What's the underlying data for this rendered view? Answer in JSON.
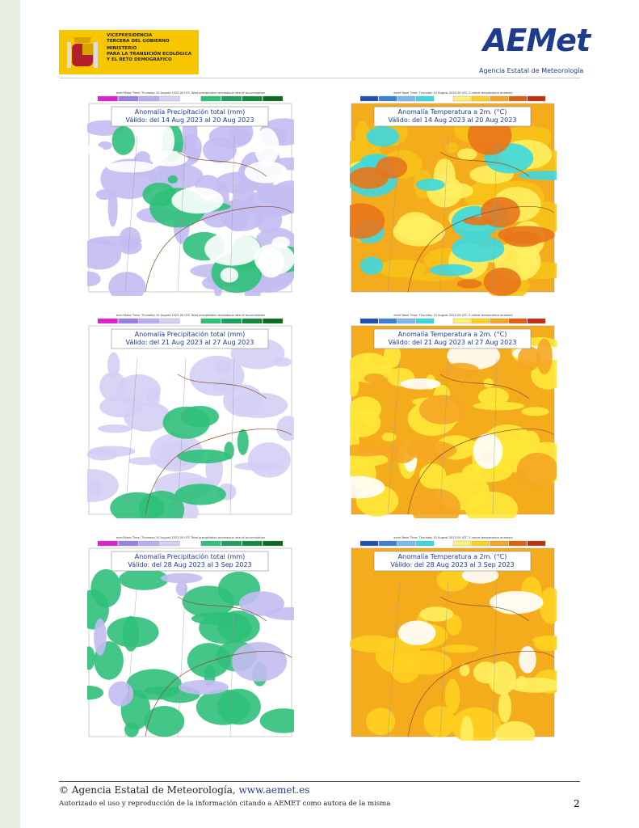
{
  "header": {
    "government": [
      "VICEPRESIDENCIA",
      "TERCERA DEL GOBIERNO",
      "MINISTERIO",
      "PARA LA TRANSICIÓN ECOLÓGICA",
      "Y EL RETO DEMOGRÁFICO"
    ],
    "logo": "AEMet",
    "agency": "Agencia Estatal de Meteorología"
  },
  "maps": [
    {
      "caption": "ecmf Base Time: Thursday 10 August 2023 00 UTC Total precipitation anomalous rate of accumulation",
      "title": "Anomalía Precipitación total (mm)",
      "valid": "Válido: del 14 Aug 2023 al 20 Aug 2023"
    },
    {
      "caption": "ecmf Base Time: Thursday 10 August 2023 00 UTC 2 metre temperature anomaly",
      "title": "Anomalía Temperatura a 2m. (°C)",
      "valid": "Válido: del 14 Aug 2023 al 20 Aug 2023"
    },
    {
      "caption": "ecmf Base Time: Thursday 10 August 2023 00 UTC Total precipitation anomalous rate of accumulation",
      "title": "Anomalía Precipitación total (mm)",
      "valid": "Válido: del 21 Aug 2023 al 27 Aug 2023"
    },
    {
      "caption": "ecmf Base Time: Thursday 10 August 2023 00 UTC 2 metre temperature anomaly",
      "title": "Anomalía Temperatura a 2m. (°C)",
      "valid": "Válido: del 21 Aug 2023 al 27 Aug 2023"
    },
    {
      "caption": "ecmf Base Time: Thursday 10 August 2023 00 UTC Total precipitation anomalous rate of accumulation",
      "title": "Anomalía Precipitación total (mm)",
      "valid": "Válido: del 28 Aug 2023 al 3 Sep 2023"
    },
    {
      "caption": "ecmf Base Time: Thursday 10 August 2023 00 UTC 2 metre temperature anomaly",
      "title": "Anomalía Temperatura a 2m. (°C)",
      "valid": "Válido: del 28 Aug 2023 al 3 Sep 2023"
    }
  ],
  "footer": {
    "copyright": "© Agencia Estatal de Meteorología,",
    "url": "www.aemet.es",
    "license": "Autorizado el uso y reproducción de la información citando a AEMET como autora de la misma",
    "page": "2"
  }
}
